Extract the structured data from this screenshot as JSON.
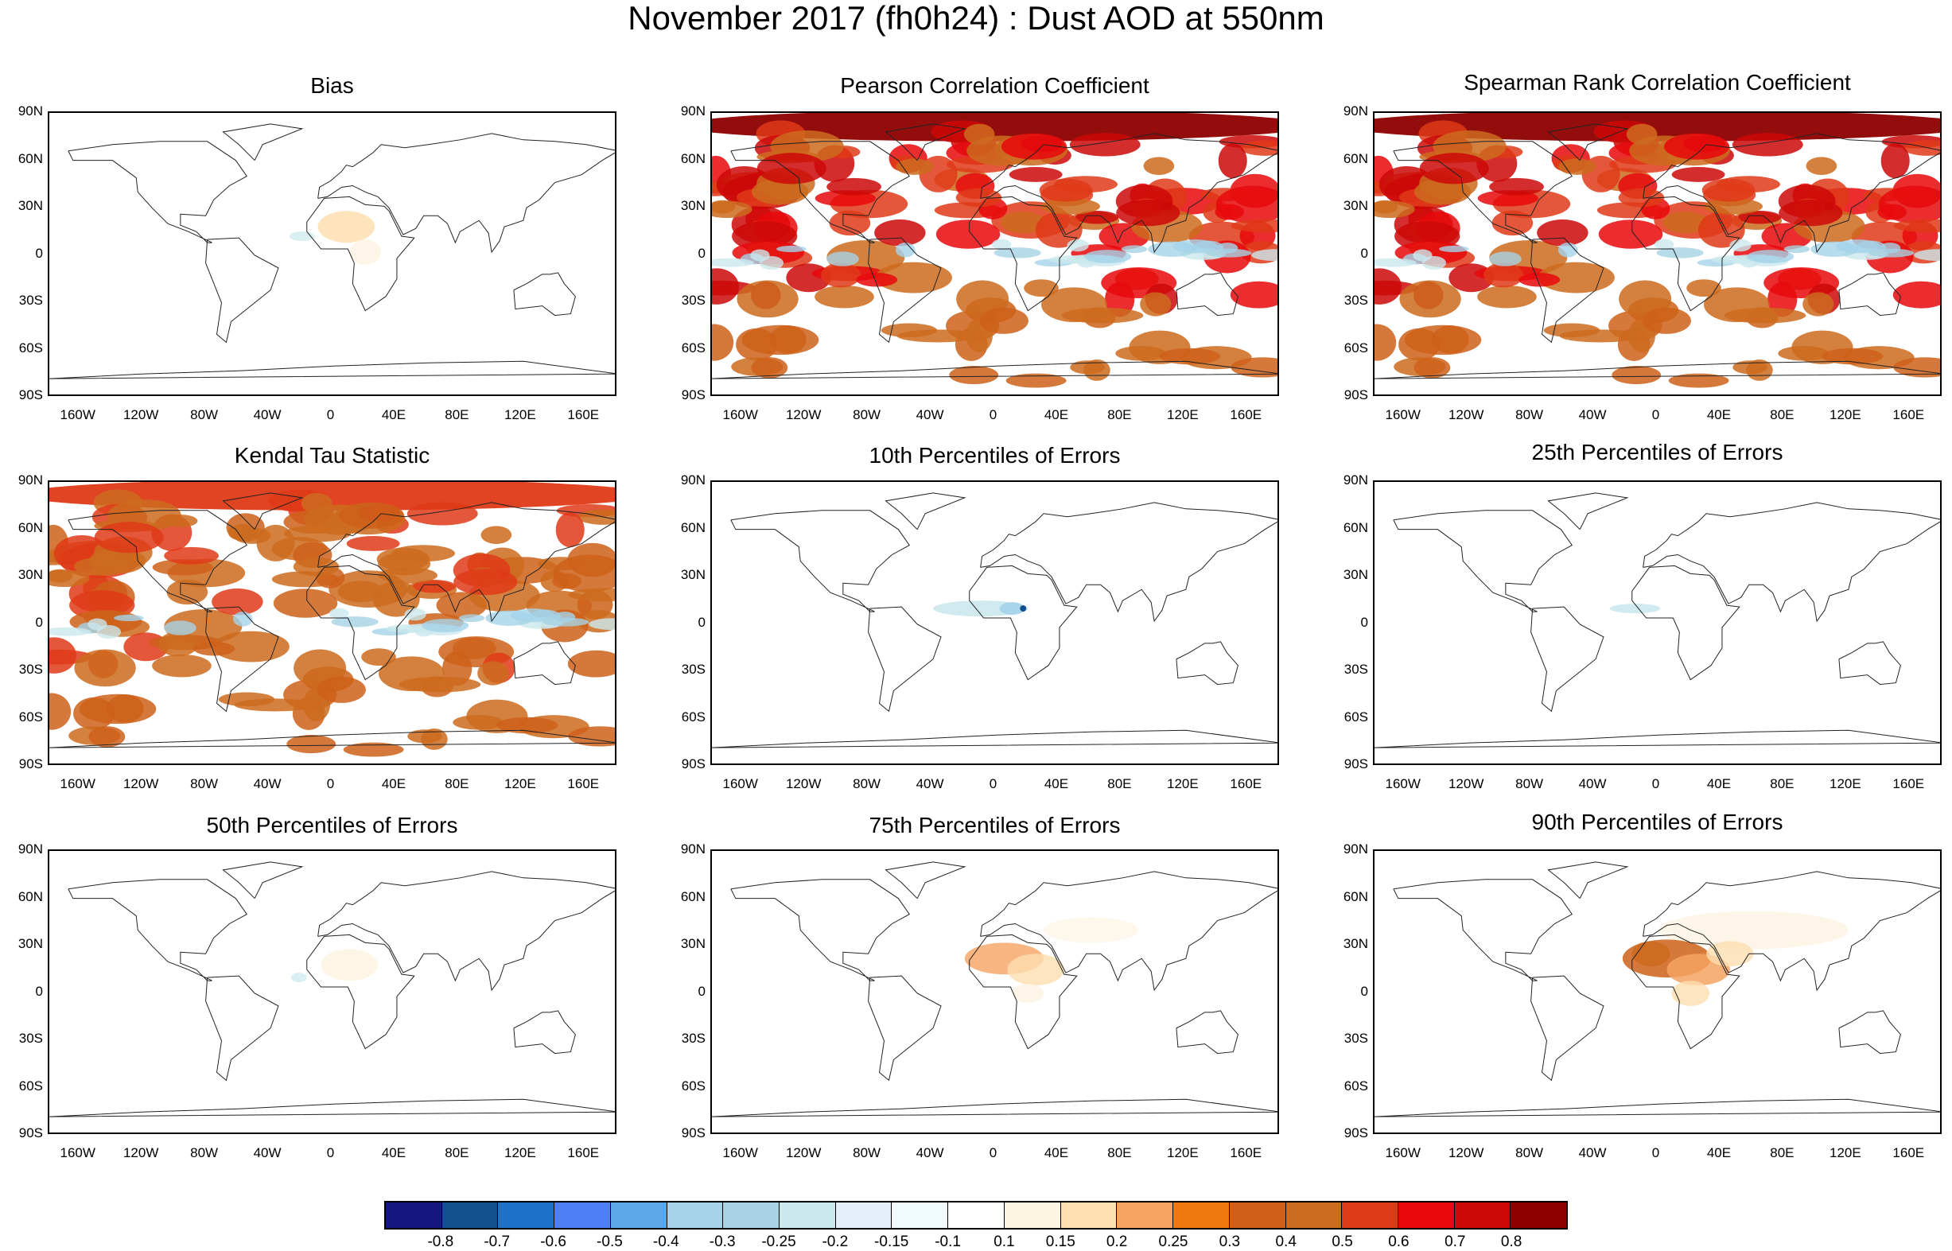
{
  "title": "November 2017 (fh0h24) : Dust AOD at 550nm",
  "lat_labels": [
    "90N",
    "60N",
    "30N",
    "0",
    "30S",
    "60S",
    "90S"
  ],
  "lon_labels": [
    "160W",
    "120W",
    "80W",
    "40W",
    "0",
    "40E",
    "80E",
    "120E",
    "160E"
  ],
  "panels": [
    {
      "title": "Bias",
      "fill": "bias"
    },
    {
      "title": "Pearson Correlation Coefficient",
      "fill": "corr-high"
    },
    {
      "title": "Spearman Rank Correlation Coefficient",
      "fill": "corr-high"
    },
    {
      "title": "Kendal Tau Statistic",
      "fill": "corr-mid"
    },
    {
      "title": "10th Percentiles of Errors",
      "fill": "p10"
    },
    {
      "title": "25th Percentiles of Errors",
      "fill": "p25"
    },
    {
      "title": "50th Percentiles of Errors",
      "fill": "p50"
    },
    {
      "title": "75th Percentiles of Errors",
      "fill": "p75"
    },
    {
      "title": "90th Percentiles of Errors",
      "fill": "p90"
    }
  ],
  "colorbar": {
    "labels": [
      "-0.8",
      "-0.7",
      "-0.6",
      "-0.5",
      "-0.4",
      "-0.3",
      "-0.25",
      "-0.2",
      "-0.15",
      "-0.1",
      "0.1",
      "0.15",
      "0.2",
      "0.25",
      "0.3",
      "0.4",
      "0.5",
      "0.6",
      "0.7",
      "0.8"
    ],
    "colors": [
      "#14177f",
      "#14508f",
      "#1f72c9",
      "#4e7ff4",
      "#5aa8e8",
      "#a4d3ea",
      "#a6d2e4",
      "#cbe8ed",
      "#e3eef9",
      "#f2fbfd",
      "#ffffff",
      "#fdf4e2",
      "#fddfb0",
      "#f5a362",
      "#ef780e",
      "#ce6019",
      "#cd6b1f",
      "#df3a17",
      "#e8080c",
      "#cc0808",
      "#8e0000"
    ]
  }
}
